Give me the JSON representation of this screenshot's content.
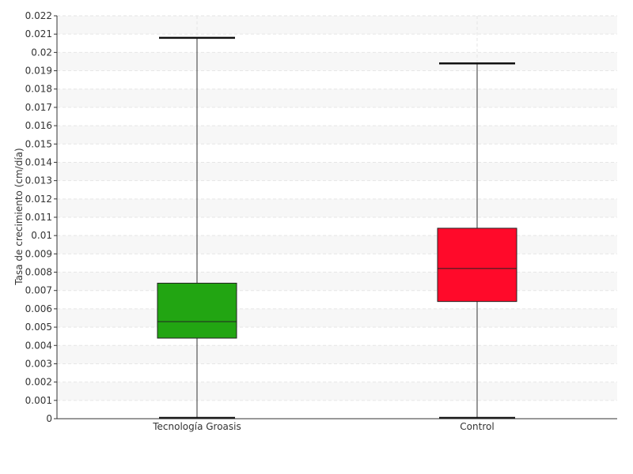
{
  "chart_data": {
    "type": "boxplot",
    "ylabel": "Tasa de crecimiento (cm/día)",
    "ylim": [
      0,
      0.022
    ],
    "yticks": [
      "0",
      "0.001",
      "0.002",
      "0.003",
      "0.004",
      "0.005",
      "0.006",
      "0.007",
      "0.008",
      "0.009",
      "0.01",
      "0.011",
      "0.012",
      "0.013",
      "0.014",
      "0.015",
      "0.016",
      "0.017",
      "0.018",
      "0.019",
      "0.02",
      "0.021",
      "0.022"
    ],
    "categories": [
      "Tecnología Groasis",
      "Control"
    ],
    "boxes": [
      {
        "category": "Tecnología Groasis",
        "min": 0.0,
        "q1": 0.0044,
        "median": 0.0053,
        "q3": 0.0074,
        "max": 0.0208,
        "color": "#22a512"
      },
      {
        "category": "Control",
        "min": 0.0,
        "q1": 0.0064,
        "median": 0.0082,
        "q3": 0.0104,
        "max": 0.0194,
        "color": "#ff0a2a"
      }
    ],
    "grid": true
  }
}
